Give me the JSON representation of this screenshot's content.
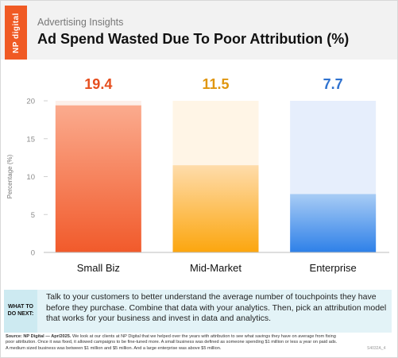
{
  "brand": {
    "logo_text": "NP digital",
    "accent": "#f05a24"
  },
  "header": {
    "subtitle": "Advertising Insights",
    "title": "Ad Spend Wasted Due To Poor Attribution (%)"
  },
  "chart_data": {
    "type": "bar",
    "categories": [
      "Small Biz",
      "Mid-Market",
      "Enterprise"
    ],
    "values": [
      19.4,
      11.5,
      7.7
    ],
    "value_labels": [
      "19.4",
      "11.5",
      "7.7"
    ],
    "title": "Ad Spend Wasted Due To Poor Attribution (%)",
    "xlabel": "",
    "ylabel": "Percentage (%)",
    "ylim": [
      0,
      20
    ],
    "yticks": [
      0,
      5,
      10,
      15,
      20
    ],
    "grid": false,
    "legend": "none",
    "colors": {
      "Small Biz": {
        "bar_top": "#fbab8e",
        "bar_bottom": "#f15a2b",
        "background": "#fdf0ea",
        "label": "#e64f1f"
      },
      "Mid-Market": {
        "bar_top": "#fedcab",
        "bar_bottom": "#fca60e",
        "background": "#fff5e6",
        "label": "#e0960e"
      },
      "Enterprise": {
        "bar_top": "#a8ccf5",
        "bar_bottom": "#2e80e8",
        "background": "#e6eefc",
        "label": "#2f72cf"
      }
    }
  },
  "callout": {
    "label": "WHAT TO DO NEXT:",
    "text": "Talk to your customers to better understand the average number of touchpoints they have before they purchase. Combine that data with your analytics. Then, pick an attribution model that works for your business and invest in data and analytics."
  },
  "footer": {
    "source_label": "Source: NP Digital — Apr/2025.",
    "source_text": "We look at our clients at NP Digital that we helped over the years with attribution to see what savings they have on average from fixing poor attribution. Once it was fixed, it allowed campaigns to be fine-tuned more. A small business was defined as someone spending $1 million or less a year on paid ads. A medium sized business was between $1 million and $5 million. And a large enterprise was above $5 million.",
    "code": "S4032A_4"
  }
}
